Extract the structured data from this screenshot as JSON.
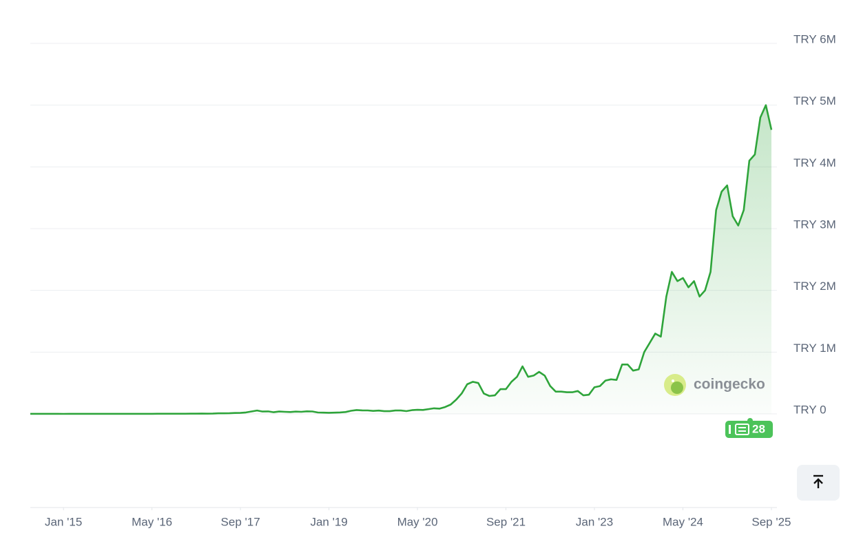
{
  "chart_data": {
    "type": "line",
    "color": "#2ea43a",
    "fill": "area",
    "grid": true,
    "watermark": "coingecko",
    "badge": "28",
    "xlim": [
      "2014-07",
      "2025-10"
    ],
    "ylim": [
      0,
      6000000
    ],
    "yticks": [
      {
        "value": 0,
        "label": "TRY 0"
      },
      {
        "value": 1000000,
        "label": "TRY 1M"
      },
      {
        "value": 2000000,
        "label": "TRY 2M"
      },
      {
        "value": 3000000,
        "label": "TRY 3M"
      },
      {
        "value": 4000000,
        "label": "TRY 4M"
      },
      {
        "value": 5000000,
        "label": "TRY 5M"
      },
      {
        "value": 6000000,
        "label": "TRY 6M"
      }
    ],
    "xticks": [
      {
        "value": "2015-01",
        "label": "Jan '15"
      },
      {
        "value": "2016-05",
        "label": "May '16"
      },
      {
        "value": "2017-09",
        "label": "Sep '17"
      },
      {
        "value": "2019-01",
        "label": "Jan '19"
      },
      {
        "value": "2020-05",
        "label": "May '20"
      },
      {
        "value": "2021-09",
        "label": "Sep '21"
      },
      {
        "value": "2023-01",
        "label": "Jan '23"
      },
      {
        "value": "2024-05",
        "label": "May '24"
      },
      {
        "value": "2025-09",
        "label": "Sep '25"
      }
    ],
    "x": [
      "2014-07",
      "2014-08",
      "2014-09",
      "2014-10",
      "2014-11",
      "2014-12",
      "2015-01",
      "2015-02",
      "2015-03",
      "2015-04",
      "2015-05",
      "2015-06",
      "2015-07",
      "2015-08",
      "2015-09",
      "2015-10",
      "2015-11",
      "2015-12",
      "2016-01",
      "2016-02",
      "2016-03",
      "2016-04",
      "2016-05",
      "2016-06",
      "2016-07",
      "2016-08",
      "2016-09",
      "2016-10",
      "2016-11",
      "2016-12",
      "2017-01",
      "2017-02",
      "2017-03",
      "2017-04",
      "2017-05",
      "2017-06",
      "2017-07",
      "2017-08",
      "2017-09",
      "2017-10",
      "2017-11",
      "2017-12",
      "2018-01",
      "2018-02",
      "2018-03",
      "2018-04",
      "2018-05",
      "2018-06",
      "2018-07",
      "2018-08",
      "2018-09",
      "2018-10",
      "2018-11",
      "2018-12",
      "2019-01",
      "2019-02",
      "2019-03",
      "2019-04",
      "2019-05",
      "2019-06",
      "2019-07",
      "2019-08",
      "2019-09",
      "2019-10",
      "2019-11",
      "2019-12",
      "2020-01",
      "2020-02",
      "2020-03",
      "2020-04",
      "2020-05",
      "2020-06",
      "2020-07",
      "2020-08",
      "2020-09",
      "2020-10",
      "2020-11",
      "2020-12",
      "2021-01",
      "2021-02",
      "2021-03",
      "2021-04",
      "2021-05",
      "2021-06",
      "2021-07",
      "2021-08",
      "2021-09",
      "2021-10",
      "2021-11",
      "2021-12",
      "2022-01",
      "2022-02",
      "2022-03",
      "2022-04",
      "2022-05",
      "2022-06",
      "2022-07",
      "2022-08",
      "2022-09",
      "2022-10",
      "2022-11",
      "2022-12",
      "2023-01",
      "2023-02",
      "2023-03",
      "2023-04",
      "2023-05",
      "2023-06",
      "2023-07",
      "2023-08",
      "2023-09",
      "2023-10",
      "2023-11",
      "2023-12",
      "2024-01",
      "2024-02",
      "2024-03",
      "2024-04",
      "2024-05",
      "2024-06",
      "2024-07",
      "2024-08",
      "2024-09",
      "2024-10",
      "2024-11",
      "2024-12",
      "2025-01",
      "2025-02",
      "2025-03",
      "2025-04",
      "2025-05",
      "2025-06",
      "2025-07",
      "2025-08",
      "2025-09"
    ],
    "values": [
      1350,
      1100,
      850,
      750,
      850,
      730,
      530,
      630,
      620,
      620,
      630,
      700,
      780,
      660,
      690,
      920,
      1000,
      1250,
      1100,
      1270,
      1180,
      1350,
      1580,
      1950,
      1920,
      1700,
      1800,
      2200,
      2300,
      3350,
      3600,
      4300,
      3800,
      4800,
      8800,
      8600,
      10000,
      15000,
      15500,
      23000,
      39000,
      55000,
      38000,
      40000,
      27000,
      38000,
      34000,
      30000,
      37000,
      33000,
      41000,
      39000,
      22000,
      20000,
      18000,
      20000,
      23000,
      30000,
      50000,
      62000,
      57000,
      56000,
      48000,
      53000,
      44000,
      43000,
      55000,
      55000,
      45000,
      60000,
      66000,
      64000,
      77000,
      90000,
      85000,
      110000,
      150000,
      230000,
      330000,
      480000,
      520000,
      500000,
      330000,
      290000,
      300000,
      400000,
      400000,
      520000,
      600000,
      770000,
      600000,
      620000,
      680000,
      620000,
      450000,
      360000,
      360000,
      350000,
      350000,
      370000,
      300000,
      310000,
      430000,
      450000,
      540000,
      560000,
      550000,
      800000,
      800000,
      700000,
      720000,
      1000000,
      1150000,
      1300000,
      1250000,
      1900000,
      2300000,
      2150000,
      2200000,
      2050000,
      2150000,
      1900000,
      2000000,
      2300000,
      3300000,
      3600000,
      3700000,
      3200000,
      3050000,
      3300000,
      4100000,
      4200000,
      4800000,
      5000000,
      4600000
    ]
  }
}
